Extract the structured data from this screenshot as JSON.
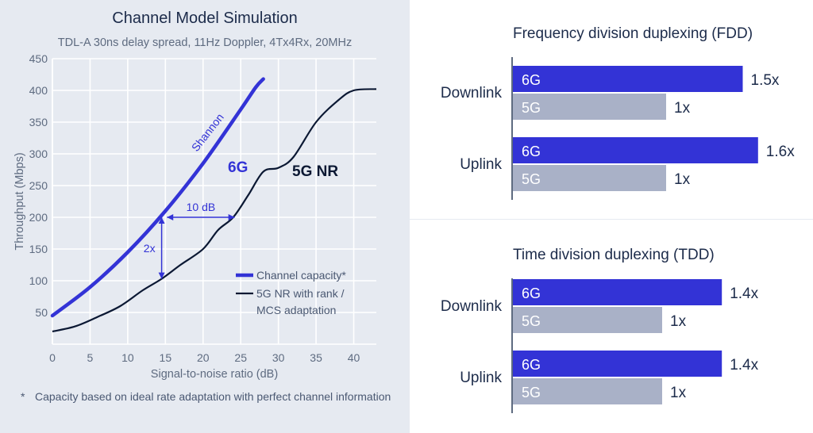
{
  "chart_data": [
    {
      "type": "line",
      "title": "Channel Model Simulation",
      "subtitle": "TDL-A 30ns delay spread, 11Hz Doppler, 4Tx4Rx, 20MHz",
      "xlabel": "Signal-to-noise ratio (dB)",
      "ylabel": "Throughput (Mbps)",
      "xlim": [
        0,
        43
      ],
      "ylim": [
        0,
        450
      ],
      "xticks": [
        0,
        5,
        10,
        15,
        20,
        25,
        30,
        35,
        40
      ],
      "yticks": [
        50,
        100,
        150,
        200,
        250,
        300,
        350,
        400,
        450
      ],
      "grid": true,
      "series": [
        {
          "name": "Channel capacity*",
          "color": "#3333d6",
          "points": [
            [
              0,
              45
            ],
            [
              5,
              90
            ],
            [
              10,
              145
            ],
            [
              15,
              210
            ],
            [
              20,
              285
            ],
            [
              25,
              370
            ],
            [
              27,
              405
            ],
            [
              28,
              418
            ]
          ]
        },
        {
          "name": "5G NR with rank / MCS adaptation",
          "color": "#0b1833",
          "points": [
            [
              0,
              20
            ],
            [
              3,
              28
            ],
            [
              6,
              43
            ],
            [
              9,
              60
            ],
            [
              12,
              85
            ],
            [
              14.5,
              103
            ],
            [
              17,
              125
            ],
            [
              20,
              150
            ],
            [
              22,
              180
            ],
            [
              24,
              200
            ],
            [
              26,
              235
            ],
            [
              28,
              272
            ],
            [
              30,
              278
            ],
            [
              32,
              295
            ],
            [
              35,
              350
            ],
            [
              38,
              385
            ],
            [
              40,
              400
            ],
            [
              43,
              402
            ]
          ]
        }
      ],
      "annotations": {
        "shannon_label": "Shannon",
        "sixg_label": "6G",
        "fivegnr_label": "5G NR",
        "ten_db_label": "10 dB",
        "two_x_label": "2x"
      },
      "legend": {
        "placement": "bottom-right",
        "entries": [
          "Channel capacity*",
          "5G NR with rank /",
          "MCS adaptation"
        ]
      }
    },
    {
      "type": "bar",
      "title": "Frequency division duplexing (FDD)",
      "groups": [
        {
          "label": "Downlink",
          "bars": [
            {
              "name": "6G",
              "value": 1.5,
              "label": "1.5x"
            },
            {
              "name": "5G",
              "value": 1.0,
              "label": "1x"
            }
          ]
        },
        {
          "label": "Uplink",
          "bars": [
            {
              "name": "6G",
              "value": 1.6,
              "label": "1.6x"
            },
            {
              "name": "5G",
              "value": 1.0,
              "label": "1x"
            }
          ]
        }
      ]
    },
    {
      "type": "bar",
      "title": "Time division duplexing (TDD)",
      "groups": [
        {
          "label": "Downlink",
          "bars": [
            {
              "name": "6G",
              "value": 1.4,
              "label": "1.4x"
            },
            {
              "name": "5G",
              "value": 1.0,
              "label": "1x"
            }
          ]
        },
        {
          "label": "Uplink",
          "bars": [
            {
              "name": "6G",
              "value": 1.4,
              "label": "1.4x"
            },
            {
              "name": "5G",
              "value": 1.0,
              "label": "1x"
            }
          ]
        }
      ]
    }
  ],
  "colors": {
    "sixg": "#3333d6",
    "fiveg": "#a9b1c7",
    "nr_line": "#0b1833",
    "grid": "#ffffff"
  },
  "footnote": {
    "star": "*",
    "text": "Capacity based on ideal rate adaptation with perfect channel information"
  }
}
